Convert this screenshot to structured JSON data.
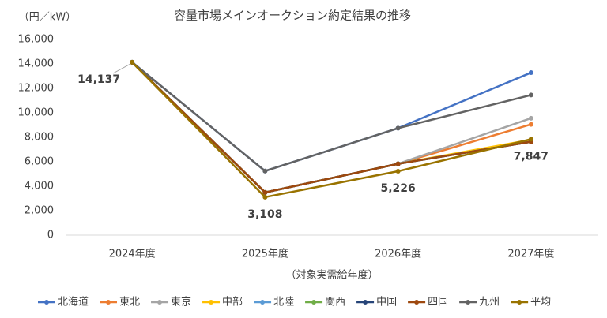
{
  "chart_data": {
    "type": "line",
    "title": "容量市場メインオークション約定結果の推移",
    "y_label": "（円／kW）",
    "x_label": "（対象実需給年度）",
    "categories": [
      "2024年度",
      "2025年度",
      "2026年度",
      "2027年度"
    ],
    "ylim": [
      0,
      16000
    ],
    "yticks": [
      0,
      {
        "value": 2000,
        "label": "2,000"
      },
      {
        "value": 4000,
        "label": "4,000"
      },
      {
        "value": 6000,
        "label": "6,000"
      },
      {
        "value": 8000,
        "label": "8,000"
      },
      {
        "value": 10000,
        "label": "10,000"
      },
      {
        "value": 12000,
        "label": "12,000"
      },
      {
        "value": 14000,
        "label": "14,000"
      },
      {
        "value": 16000,
        "label": "16,000"
      }
    ],
    "grid": false,
    "legend": "bottom",
    "series": [
      {
        "name": "北海道",
        "color": "#4472c4",
        "values": [
          14137,
          5242,
          8749,
          13287
        ]
      },
      {
        "name": "東北",
        "color": "#ed7d31",
        "values": [
          14137,
          3495,
          5832,
          9060
        ]
      },
      {
        "name": "東京",
        "color": "#a5a5a5",
        "values": [
          14137,
          3495,
          5832,
          9557
        ]
      },
      {
        "name": "中部",
        "color": "#ffc000",
        "values": [
          14137,
          3495,
          5832,
          7800
        ]
      },
      {
        "name": "北陸",
        "color": "#5b9bd5",
        "values": [
          14137,
          3495,
          5832,
          7638
        ]
      },
      {
        "name": "関西",
        "color": "#70ad47",
        "values": [
          14137,
          3495,
          5832,
          7638
        ]
      },
      {
        "name": "中国",
        "color": "#264478",
        "values": [
          14137,
          3495,
          5832,
          7638
        ]
      },
      {
        "name": "四国",
        "color": "#9e480e",
        "values": [
          14137,
          3495,
          5832,
          7638
        ]
      },
      {
        "name": "九州",
        "color": "#636363",
        "values": [
          14137,
          5242,
          8749,
          11457
        ]
      },
      {
        "name": "平均",
        "color": "#997300",
        "values": [
          14137,
          3108,
          5226,
          7847
        ],
        "value_labels": [
          "14,137",
          "3,108",
          "5,226",
          "7,847"
        ]
      }
    ]
  }
}
